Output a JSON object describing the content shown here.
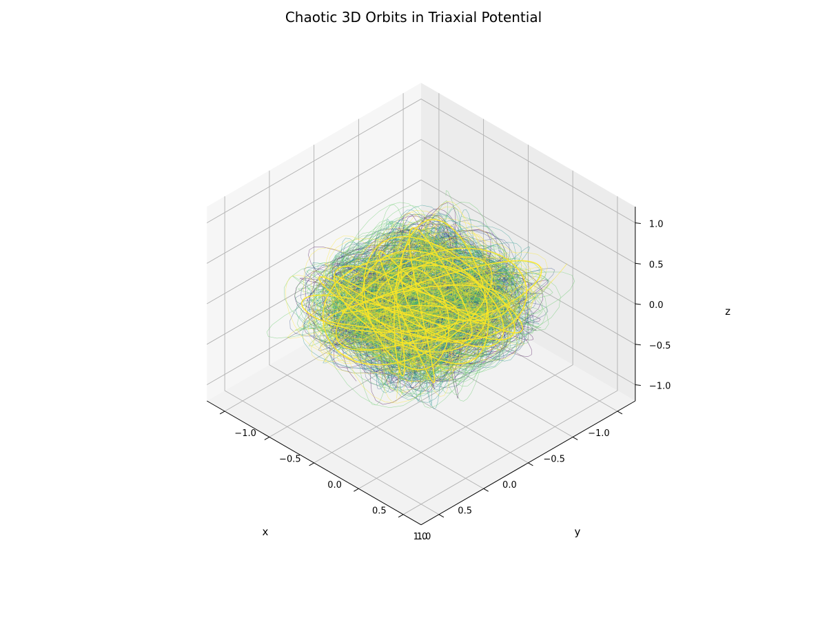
{
  "chart_data": {
    "type": "line3d",
    "title": "Chaotic 3D Orbits in Triaxial Potential",
    "xlabel": "x",
    "ylabel": "y",
    "zlabel": "z",
    "xlim": [
      -1.2,
      1.2
    ],
    "ylim": [
      -1.2,
      1.2
    ],
    "zlim": [
      -1.2,
      1.2
    ],
    "xticks": [
      1.0,
      0.5,
      0.0,
      -0.5,
      -1.0
    ],
    "xtick_labels": [
      "1.0",
      "0.5",
      "0.0",
      "−0.5",
      "−1.0"
    ],
    "yticks": [
      -1.0,
      -0.5,
      0.0,
      0.5,
      1.0
    ],
    "ytick_labels": [
      "−1.0",
      "−0.5",
      "0.0",
      "0.5",
      "1.0"
    ],
    "zticks": [
      1.0,
      0.5,
      0.0,
      -0.5,
      -1.0
    ],
    "ztick_labels": [
      "1.0",
      "0.5",
      "0.0",
      "−0.5",
      "−1.0"
    ],
    "grid": true,
    "view": {
      "elev_deg": 30,
      "azim_deg": 45
    },
    "colormap": "viridis",
    "colors": [
      "#440154",
      "#3b528b",
      "#21918c",
      "#5ec962",
      "#fde725"
    ],
    "potential_axes": {
      "a": 1.0,
      "b": 0.8,
      "c": 0.6
    },
    "orbit_count": 40,
    "orbit_extent": {
      "x": [
        -1.0,
        1.0
      ],
      "y": [
        -0.9,
        0.9
      ],
      "z": [
        -0.5,
        0.45
      ]
    },
    "highlight_orbit": {
      "color": "#fde725",
      "extent": {
        "x": [
          -0.8,
          0.8
        ],
        "y": [
          -0.6,
          0.6
        ],
        "z": [
          -0.3,
          0.3
        ]
      }
    }
  }
}
